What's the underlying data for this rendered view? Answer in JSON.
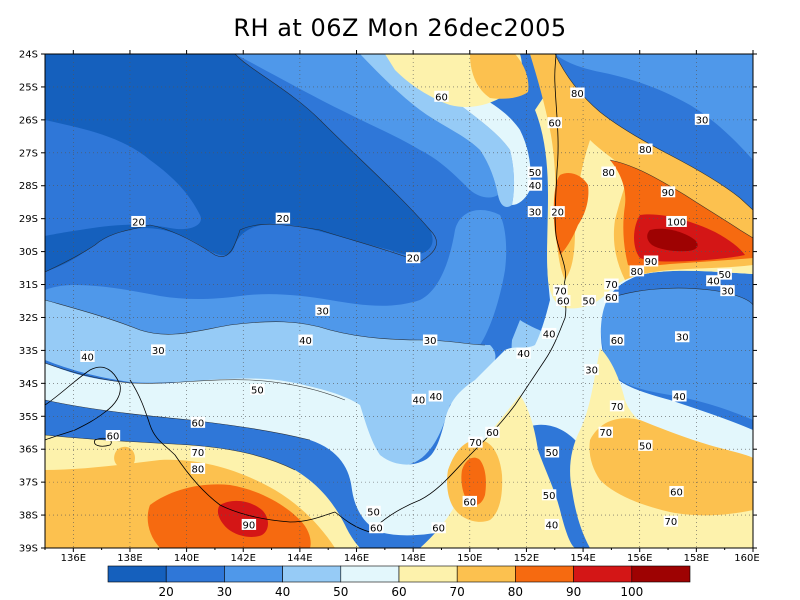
{
  "title": "RH at 06Z Mon 26dec2005",
  "map": {
    "type": "filled-contour",
    "lat_labels": [
      "24S",
      "25S",
      "26S",
      "27S",
      "28S",
      "29S",
      "30S",
      "31S",
      "32S",
      "33S",
      "34S",
      "35S",
      "36S",
      "37S",
      "38S",
      "39S"
    ],
    "lon_labels": [
      "136E",
      "138E",
      "140E",
      "142E",
      "144E",
      "146E",
      "148E",
      "150E",
      "152E",
      "154E",
      "156E",
      "158E",
      "160E"
    ],
    "lon_range": [
      135,
      160
    ],
    "lat_range": [
      -24,
      -39
    ],
    "grid": true
  },
  "colorbar": {
    "labels": [
      "20",
      "30",
      "40",
      "50",
      "60",
      "70",
      "80",
      "90",
      "100"
    ],
    "colors": [
      "#1560bd",
      "#2f77d8",
      "#4f98ea",
      "#96cbf6",
      "#e3f7fc",
      "#fdf2ac",
      "#fcc14f",
      "#f66a10",
      "#d41616",
      "#9e0202"
    ]
  },
  "contour_labels": [
    {
      "text": "60",
      "lon": 149.0,
      "lat": -25.3
    },
    {
      "text": "80",
      "lon": 153.8,
      "lat": -25.2
    },
    {
      "text": "60",
      "lon": 153.0,
      "lat": -26.1
    },
    {
      "text": "30",
      "lon": 158.2,
      "lat": -26.0
    },
    {
      "text": "80",
      "lon": 156.2,
      "lat": -26.9
    },
    {
      "text": "50",
      "lon": 152.3,
      "lat": -27.6
    },
    {
      "text": "80",
      "lon": 154.9,
      "lat": -27.6
    },
    {
      "text": "40",
      "lon": 152.3,
      "lat": -28.0
    },
    {
      "text": "90",
      "lon": 157.0,
      "lat": -28.2
    },
    {
      "text": "20",
      "lon": 138.3,
      "lat": -29.1
    },
    {
      "text": "20",
      "lon": 143.4,
      "lat": -29.0
    },
    {
      "text": "30",
      "lon": 152.3,
      "lat": -28.8
    },
    {
      "text": "20",
      "lon": 153.1,
      "lat": -28.8
    },
    {
      "text": "100",
      "lon": 157.3,
      "lat": -29.1
    },
    {
      "text": "20",
      "lon": 148.0,
      "lat": -30.2
    },
    {
      "text": "90",
      "lon": 156.4,
      "lat": -30.3
    },
    {
      "text": "80",
      "lon": 155.9,
      "lat": -30.6
    },
    {
      "text": "50",
      "lon": 159.0,
      "lat": -30.7
    },
    {
      "text": "40",
      "lon": 158.6,
      "lat": -30.9
    },
    {
      "text": "30",
      "lon": 159.1,
      "lat": -31.2
    },
    {
      "text": "70",
      "lon": 153.2,
      "lat": -31.2
    },
    {
      "text": "70",
      "lon": 155.0,
      "lat": -31.0
    },
    {
      "text": "60",
      "lon": 155.0,
      "lat": -31.4
    },
    {
      "text": "60",
      "lon": 153.3,
      "lat": -31.5
    },
    {
      "text": "50",
      "lon": 154.2,
      "lat": -31.5
    },
    {
      "text": "30",
      "lon": 144.8,
      "lat": -31.8
    },
    {
      "text": "40",
      "lon": 152.8,
      "lat": -32.5
    },
    {
      "text": "40",
      "lon": 144.2,
      "lat": -32.7
    },
    {
      "text": "30",
      "lon": 148.6,
      "lat": -32.7
    },
    {
      "text": "60",
      "lon": 155.2,
      "lat": -32.7
    },
    {
      "text": "30",
      "lon": 157.5,
      "lat": -32.6
    },
    {
      "text": "40",
      "lon": 136.5,
      "lat": -33.2
    },
    {
      "text": "30",
      "lon": 139.0,
      "lat": -33.0
    },
    {
      "text": "40",
      "lon": 151.9,
      "lat": -33.1
    },
    {
      "text": "30",
      "lon": 154.3,
      "lat": -33.6
    },
    {
      "text": "50",
      "lon": 142.5,
      "lat": -34.2
    },
    {
      "text": "40",
      "lon": 148.8,
      "lat": -34.4
    },
    {
      "text": "40",
      "lon": 148.2,
      "lat": -34.5
    },
    {
      "text": "40",
      "lon": 157.4,
      "lat": -34.4
    },
    {
      "text": "70",
      "lon": 155.2,
      "lat": -34.7
    },
    {
      "text": "60",
      "lon": 140.4,
      "lat": -35.2
    },
    {
      "text": "60",
      "lon": 137.4,
      "lat": -35.6
    },
    {
      "text": "70",
      "lon": 154.8,
      "lat": -35.5
    },
    {
      "text": "60",
      "lon": 150.8,
      "lat": -35.5
    },
    {
      "text": "70",
      "lon": 150.2,
      "lat": -35.8
    },
    {
      "text": "50",
      "lon": 156.2,
      "lat": -35.9
    },
    {
      "text": "70",
      "lon": 140.4,
      "lat": -36.1
    },
    {
      "text": "50",
      "lon": 152.9,
      "lat": -36.1
    },
    {
      "text": "80",
      "lon": 140.4,
      "lat": -36.6
    },
    {
      "text": "60",
      "lon": 157.3,
      "lat": -37.3
    },
    {
      "text": "50",
      "lon": 152.8,
      "lat": -37.4
    },
    {
      "text": "60",
      "lon": 150.0,
      "lat": -37.6
    },
    {
      "text": "50",
      "lon": 146.6,
      "lat": -37.9
    },
    {
      "text": "90",
      "lon": 142.2,
      "lat": -38.3
    },
    {
      "text": "70",
      "lon": 157.1,
      "lat": -38.2
    },
    {
      "text": "40",
      "lon": 152.9,
      "lat": -38.3
    },
    {
      "text": "60",
      "lon": 146.7,
      "lat": -38.4
    },
    {
      "text": "60",
      "lon": 148.9,
      "lat": -38.4
    }
  ]
}
